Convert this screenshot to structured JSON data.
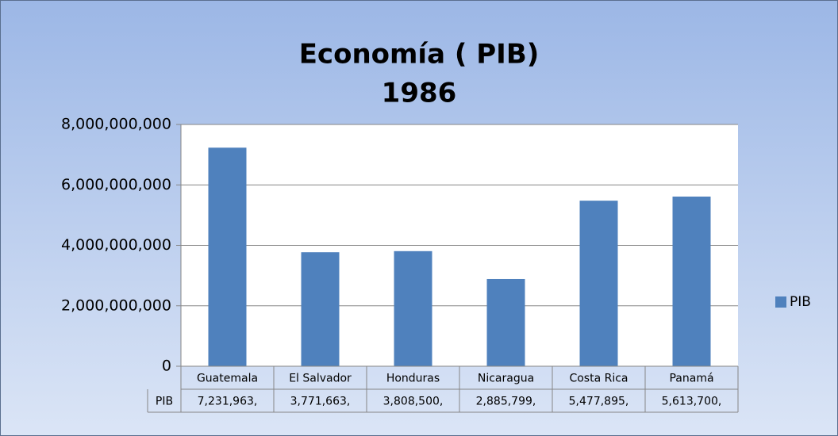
{
  "chart_data": {
    "type": "bar",
    "title": [
      "Economía ( PIB)",
      "1986"
    ],
    "categories": [
      "Guatemala",
      "El Salvador",
      "Honduras",
      "Nicaragua",
      "Costa Rica",
      "Panamá"
    ],
    "series": [
      {
        "name": "PIB",
        "color": "#4f81bd",
        "values": [
          7231963000,
          3771663000,
          3808500000,
          2885799000,
          5477895000,
          5613700000
        ],
        "value_labels": [
          "7,231,963,",
          "3,771,663,",
          "3,808,500,",
          "2,885,799,",
          "5,477,895,",
          "5,613,700,"
        ]
      }
    ],
    "ylim": [
      0,
      8000000000
    ],
    "yticks": [
      0,
      {
        "value": 2000000000,
        "label": "2,000,000,000"
      },
      {
        "value": 4000000000,
        "label": "4,000,000,000"
      },
      {
        "value": 6000000000,
        "label": "6,000,000,000"
      },
      {
        "value": 8000000000,
        "label": "8,000,000,000"
      }
    ],
    "grid": true,
    "legend": "right",
    "data_table": true
  }
}
